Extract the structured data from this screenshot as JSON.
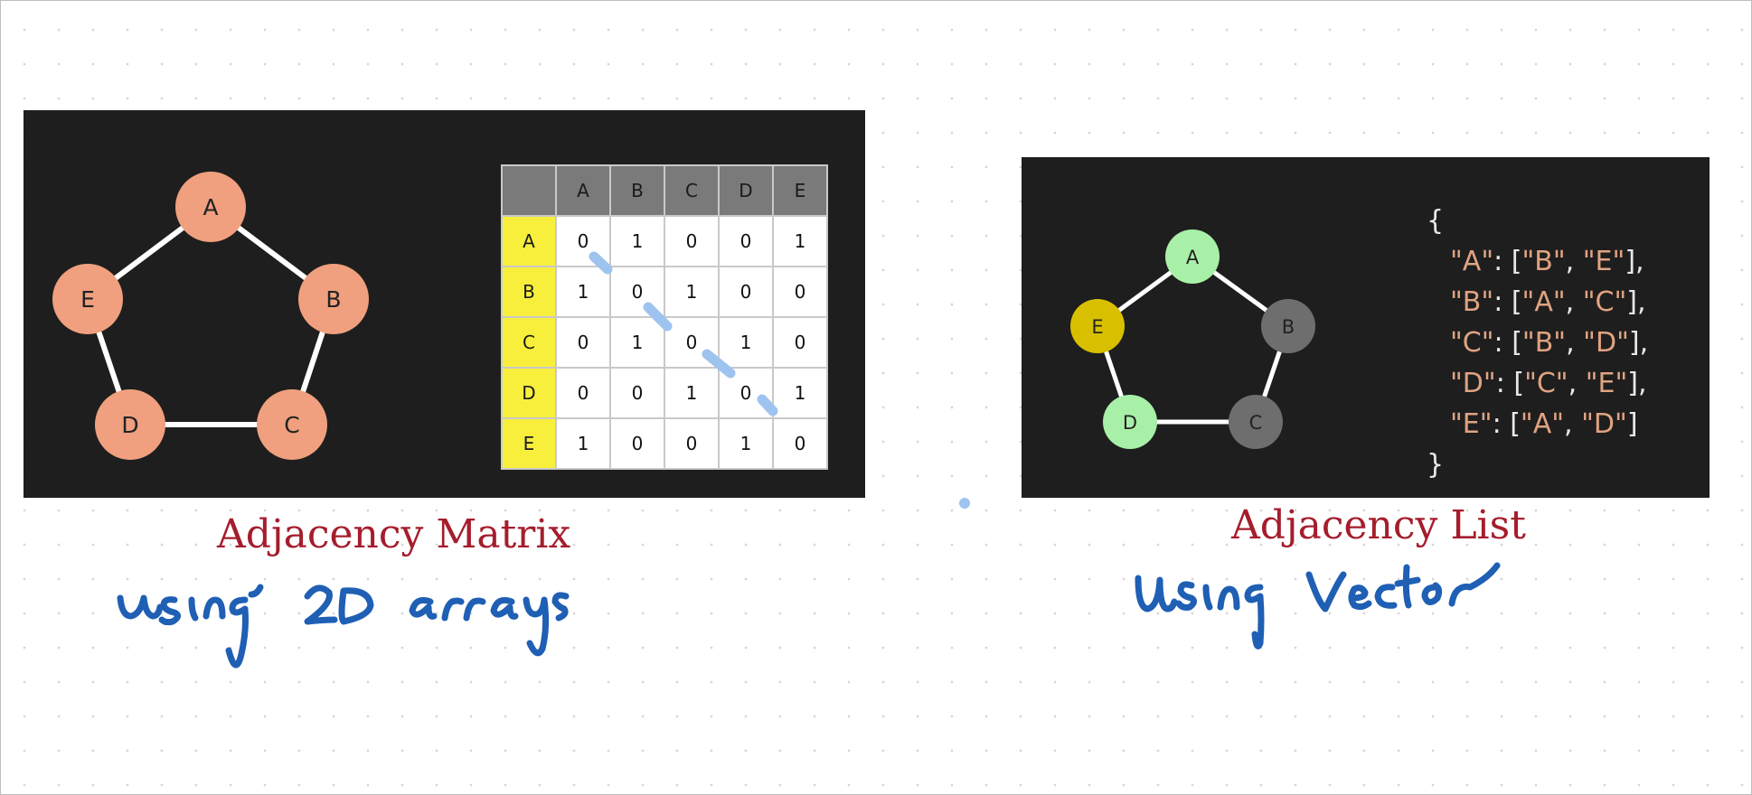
{
  "matrix_graph": {
    "nodes": [
      "A",
      "B",
      "C",
      "D",
      "E"
    ],
    "edges": [
      [
        "A",
        "B"
      ],
      [
        "B",
        "C"
      ],
      [
        "C",
        "D"
      ],
      [
        "D",
        "E"
      ],
      [
        "E",
        "A"
      ]
    ],
    "node_color": "#f0a07e"
  },
  "matrix_table": {
    "columns": [
      "A",
      "B",
      "C",
      "D",
      "E"
    ],
    "rows": [
      {
        "label": "A",
        "cells": [
          "0",
          "1",
          "0",
          "0",
          "1"
        ]
      },
      {
        "label": "B",
        "cells": [
          "1",
          "0",
          "1",
          "0",
          "0"
        ]
      },
      {
        "label": "C",
        "cells": [
          "0",
          "1",
          "0",
          "1",
          "0"
        ]
      },
      {
        "label": "D",
        "cells": [
          "0",
          "0",
          "1",
          "0",
          "1"
        ]
      },
      {
        "label": "E",
        "cells": [
          "1",
          "0",
          "0",
          "1",
          "0"
        ]
      }
    ],
    "header_color": "#7a7a7a",
    "row_header_color": "#f7ef3c"
  },
  "list_graph": {
    "nodes": [
      {
        "label": "A",
        "color": "#a8f0a8"
      },
      {
        "label": "B",
        "color": "#6e6e6e"
      },
      {
        "label": "C",
        "color": "#6e6e6e"
      },
      {
        "label": "D",
        "color": "#a8f0a8"
      },
      {
        "label": "E",
        "color": "#d8c000"
      }
    ],
    "edges": [
      [
        "A",
        "B"
      ],
      [
        "B",
        "C"
      ],
      [
        "C",
        "D"
      ],
      [
        "D",
        "E"
      ],
      [
        "E",
        "A"
      ]
    ]
  },
  "adjacency_list": {
    "open": "{",
    "close": "}",
    "entries": [
      {
        "key": "\"A\"",
        "values": [
          "\"B\"",
          "\"E\""
        ],
        "trail": ","
      },
      {
        "key": "\"B\"",
        "values": [
          "\"A\"",
          "\"C\""
        ],
        "trail": ","
      },
      {
        "key": "\"C\"",
        "values": [
          "\"B\"",
          "\"D\""
        ],
        "trail": ","
      },
      {
        "key": "\"D\"",
        "values": [
          "\"C\"",
          "\"E\""
        ],
        "trail": ","
      },
      {
        "key": "\"E\"",
        "values": [
          "\"A\"",
          "\"D\""
        ],
        "trail": ""
      }
    ]
  },
  "captions": {
    "matrix": "Adjacency Matrix",
    "list": "Adjacency List"
  },
  "handwriting": {
    "left": "using 2D arrays",
    "right": "using Vector",
    "ink_color": "#1f5fb4",
    "highlight_color": "#9fc3ef"
  }
}
